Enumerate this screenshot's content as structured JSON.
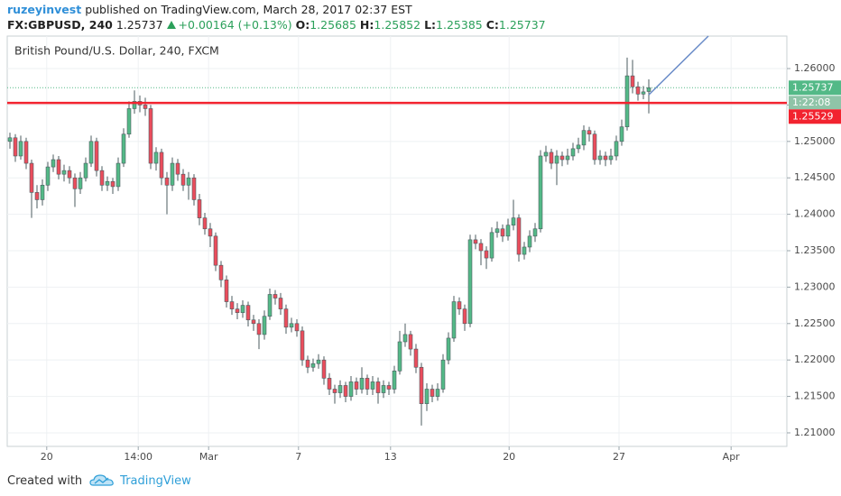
{
  "header": {
    "author": "ruzeyinvest",
    "published": "published on TradingView.com, March 28, 2017 02:37 EST",
    "symbol": "FX:GBPUSD, 240",
    "change": "+0.00164 (+0.13%)",
    "ohlc_labels": [
      "O:",
      "H:",
      "L:",
      "C:"
    ]
  },
  "chart_data": {
    "type": "candlestick",
    "title": "British Pound/U.S. Dollar, 240, FXCM",
    "open": [
      1.25,
      1.2505,
      1.248,
      1.25,
      1.247,
      1.243,
      1.242,
      1.244,
      1.2465,
      1.2475,
      1.2455,
      1.246,
      1.245,
      1.2435,
      1.245,
      1.247,
      1.25,
      1.246,
      1.244,
      1.2445,
      1.2438,
      1.247,
      1.251,
      1.2545,
      1.2555,
      1.255,
      1.2545,
      1.247,
      1.2485,
      1.245,
      1.244,
      1.247,
      1.2455,
      1.244,
      1.245,
      1.242,
      1.2395,
      1.238,
      1.237,
      1.233,
      1.231,
      1.228,
      1.227,
      1.2265,
      1.2275,
      1.2255,
      1.225,
      1.2235,
      1.226,
      1.229,
      1.2285,
      1.227,
      1.2245,
      1.225,
      1.224,
      1.22,
      1.219,
      1.2195,
      1.22,
      1.2175,
      1.216,
      1.2155,
      1.2165,
      1.215,
      1.217,
      1.216,
      1.2175,
      1.216,
      1.217,
      1.2155,
      1.2165,
      1.216,
      1.2185,
      1.2225,
      1.2235,
      1.2215,
      1.219,
      1.214,
      1.216,
      1.215,
      1.216,
      1.22,
      1.223,
      1.228,
      1.227,
      1.225,
      1.2365,
      1.236,
      1.235,
      1.234,
      1.2375,
      1.238,
      1.237,
      1.2385,
      1.2395,
      1.2345,
      1.2355,
      1.237,
      1.238,
      1.248,
      1.2485,
      1.247,
      1.248,
      1.2475,
      1.248,
      1.249,
      1.2495,
      1.2515,
      1.251,
      1.2475,
      1.248,
      1.2475,
      1.248,
      1.25,
      1.252,
      1.259,
      1.2575,
      1.2565,
      1.25685
    ],
    "high": [
      1.2512,
      1.251,
      1.2508,
      1.2505,
      1.2475,
      1.244,
      1.2448,
      1.2472,
      1.2482,
      1.248,
      1.2468,
      1.2466,
      1.2456,
      1.2458,
      1.2478,
      1.2508,
      1.2505,
      1.2466,
      1.2452,
      1.245,
      1.2478,
      1.2518,
      1.2555,
      1.257,
      1.2563,
      1.256,
      1.255,
      1.2492,
      1.249,
      1.2458,
      1.2478,
      1.2476,
      1.2462,
      1.2458,
      1.2455,
      1.2428,
      1.2402,
      1.2388,
      1.2375,
      1.2336,
      1.2316,
      1.2288,
      1.2278,
      1.2282,
      1.228,
      1.2262,
      1.2256,
      1.2268,
      1.2298,
      1.2296,
      1.2292,
      1.2276,
      1.2258,
      1.2256,
      1.2246,
      1.2206,
      1.2202,
      1.2208,
      1.2205,
      1.2182,
      1.2166,
      1.2172,
      1.217,
      1.2178,
      1.2176,
      1.219,
      1.218,
      1.2178,
      1.2176,
      1.2172,
      1.217,
      1.2192,
      1.224,
      1.225,
      1.224,
      1.2222,
      1.2196,
      1.2168,
      1.2166,
      1.2168,
      1.2208,
      1.2238,
      1.2288,
      1.2286,
      1.2276,
      1.2372,
      1.2372,
      1.2366,
      1.2356,
      1.2382,
      1.239,
      1.2386,
      1.2394,
      1.242,
      1.24,
      1.2362,
      1.2378,
      1.2388,
      1.2488,
      1.2494,
      1.249,
      1.2488,
      1.2486,
      1.249,
      1.2498,
      1.2505,
      1.2522,
      1.252,
      1.2515,
      1.2488,
      1.2486,
      1.249,
      1.2508,
      1.253,
      1.2615,
      1.2612,
      1.2582,
      1.2576,
      1.25852
    ],
    "low": [
      1.249,
      1.2472,
      1.2475,
      1.2462,
      1.2395,
      1.2408,
      1.2412,
      1.2432,
      1.2458,
      1.2448,
      1.2445,
      1.2442,
      1.241,
      1.2428,
      1.2445,
      1.2465,
      1.2452,
      1.2432,
      1.2432,
      1.2428,
      1.2432,
      1.2465,
      1.2505,
      1.2538,
      1.254,
      1.2535,
      1.2462,
      1.246,
      1.244,
      1.24,
      1.2432,
      1.2446,
      1.2432,
      1.242,
      1.2412,
      1.2385,
      1.2372,
      1.2355,
      1.2322,
      1.23,
      1.2272,
      1.2262,
      1.2256,
      1.2258,
      1.2246,
      1.224,
      1.2215,
      1.2228,
      1.2255,
      1.2276,
      1.2262,
      1.2236,
      1.2238,
      1.2232,
      1.2192,
      1.2182,
      1.2184,
      1.2188,
      1.2166,
      1.2152,
      1.214,
      1.2148,
      1.2142,
      1.2144,
      1.2152,
      1.2154,
      1.2152,
      1.2152,
      1.214,
      1.2148,
      1.2152,
      1.2154,
      1.218,
      1.2218,
      1.2206,
      1.2182,
      1.211,
      1.213,
      1.2142,
      1.2144,
      1.2155,
      1.2194,
      1.2225,
      1.2262,
      1.224,
      1.2245,
      1.2352,
      1.233,
      1.2325,
      1.2335,
      1.2368,
      1.2362,
      1.2364,
      1.2378,
      1.2335,
      1.2338,
      1.2348,
      1.2362,
      1.2375,
      1.2472,
      1.2462,
      1.244,
      1.2466,
      1.2468,
      1.2474,
      1.2484,
      1.2488,
      1.25,
      1.2468,
      1.2468,
      1.2466,
      1.2468,
      1.2474,
      1.2494,
      1.2515,
      1.2566,
      1.2556,
      1.2558,
      1.25385
    ],
    "close": [
      1.2505,
      1.248,
      1.25,
      1.247,
      1.243,
      1.242,
      1.244,
      1.2465,
      1.2475,
      1.2455,
      1.246,
      1.245,
      1.2435,
      1.245,
      1.247,
      1.25,
      1.246,
      1.244,
      1.2445,
      1.2438,
      1.247,
      1.251,
      1.2545,
      1.2555,
      1.255,
      1.2545,
      1.247,
      1.2485,
      1.245,
      1.244,
      1.247,
      1.2455,
      1.244,
      1.245,
      1.242,
      1.2395,
      1.238,
      1.237,
      1.233,
      1.231,
      1.228,
      1.227,
      1.2265,
      1.2275,
      1.2255,
      1.225,
      1.2235,
      1.226,
      1.229,
      1.2285,
      1.227,
      1.2245,
      1.225,
      1.224,
      1.22,
      1.219,
      1.2195,
      1.22,
      1.2175,
      1.216,
      1.2155,
      1.2165,
      1.215,
      1.217,
      1.216,
      1.2175,
      1.216,
      1.217,
      1.2155,
      1.2165,
      1.216,
      1.2185,
      1.2225,
      1.2235,
      1.2215,
      1.219,
      1.214,
      1.216,
      1.215,
      1.216,
      1.22,
      1.223,
      1.228,
      1.227,
      1.225,
      1.2365,
      1.236,
      1.235,
      1.234,
      1.2375,
      1.238,
      1.237,
      1.2385,
      1.2395,
      1.2345,
      1.2355,
      1.237,
      1.238,
      1.248,
      1.2485,
      1.247,
      1.248,
      1.2475,
      1.248,
      1.249,
      1.2495,
      1.2515,
      1.251,
      1.2475,
      1.248,
      1.2475,
      1.248,
      1.25,
      1.252,
      1.259,
      1.2575,
      1.2565,
      1.2568,
      1.25737
    ],
    "up_color": "#53b987",
    "down_color": "#eb4d5c",
    "xlim": [
      -0.5,
      143.5
    ],
    "xticks": [
      {
        "value": 6.8,
        "label": "20"
      },
      {
        "value": 23.7,
        "label": "14:00"
      },
      {
        "value": 36.7,
        "label": "Mar"
      },
      {
        "value": 53.3,
        "label": "7"
      },
      {
        "value": 70.3,
        "label": "13"
      },
      {
        "value": 92.2,
        "label": "20"
      },
      {
        "value": 112.5,
        "label": "27"
      },
      {
        "value": 133.2,
        "label": "Apr"
      }
    ],
    "ylim": [
      1.20814,
      1.26446
    ],
    "yticks": [
      {
        "value": 1.21,
        "label": "1.21000"
      },
      {
        "value": 1.215,
        "label": "1.21500"
      },
      {
        "value": 1.22,
        "label": "1.22000"
      },
      {
        "value": 1.225,
        "label": "1.22500"
      },
      {
        "value": 1.23,
        "label": "1.23000"
      },
      {
        "value": 1.235,
        "label": "1.23500"
      },
      {
        "value": 1.24,
        "label": "1.24000"
      },
      {
        "value": 1.245,
        "label": "1.24500"
      },
      {
        "value": 1.25,
        "label": "1.25000"
      },
      {
        "value": 1.255,
        "label": "1.25500"
      },
      {
        "value": 1.26,
        "label": "1.26000"
      }
    ],
    "grid": true,
    "hline": {
      "value": 1.25529,
      "color": "#f2232f"
    },
    "trendline": {
      "x": [
        118,
        129
      ],
      "y": [
        1.2564,
        1.26446
      ],
      "color": "#6a8cc8"
    },
    "countdown": "1:22:08"
  },
  "footer": {
    "created_with": "Created with",
    "brand": "TradingView"
  }
}
